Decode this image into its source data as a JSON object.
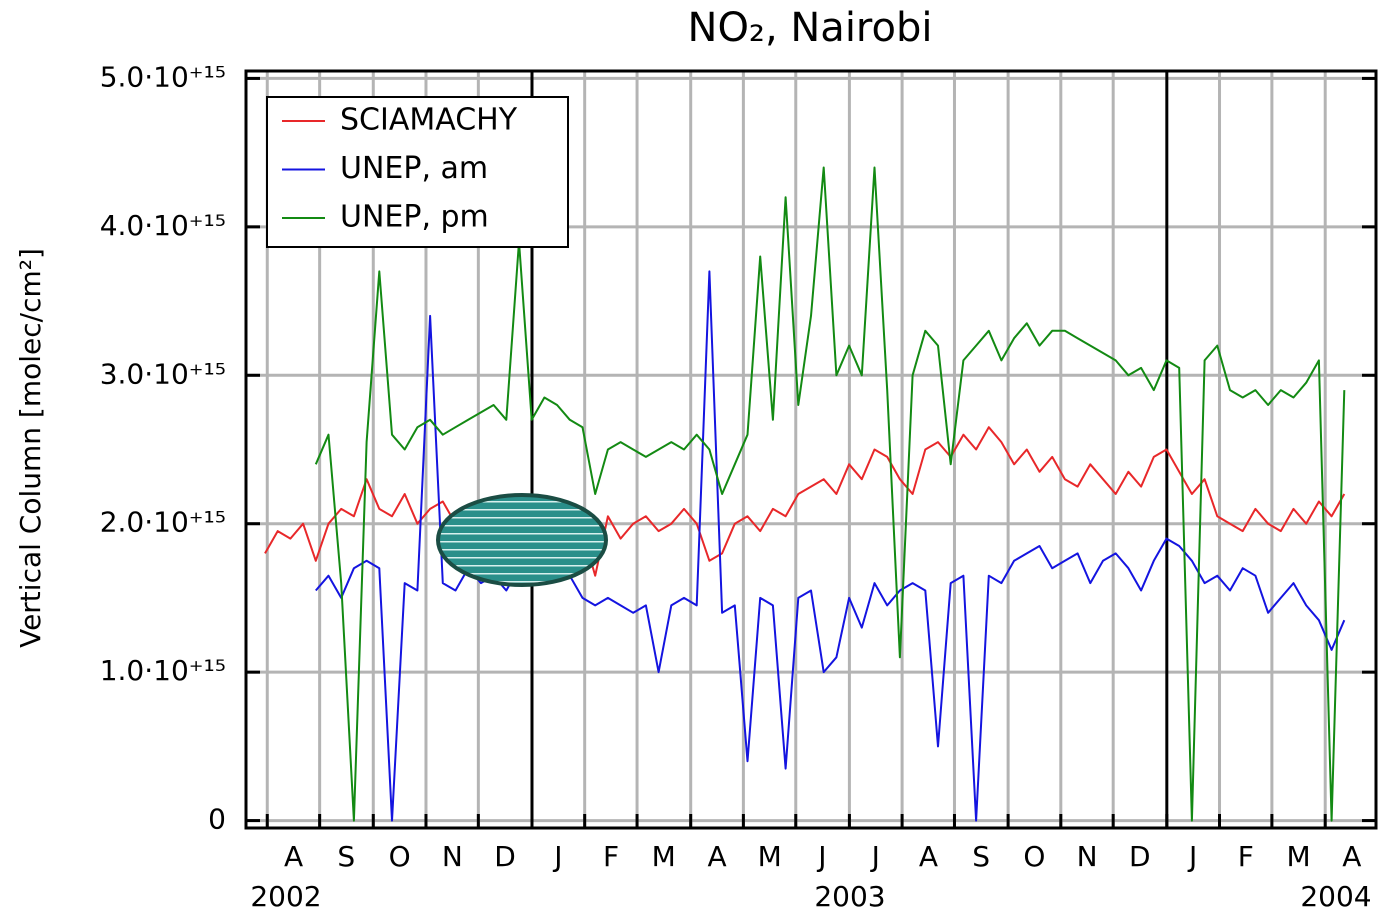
{
  "chart_data": {
    "type": "line",
    "title": "NO₂, Nairobi",
    "y_label": "Vertical Column [molec/cm²]",
    "years": [
      "2002",
      "2003",
      "2004"
    ],
    "xlim": [
      2002.55,
      2004.33
    ],
    "xticks": [
      {
        "value": 2002.625,
        "label": "A"
      },
      {
        "value": 2002.708,
        "label": "S"
      },
      {
        "value": 2002.792,
        "label": "O"
      },
      {
        "value": 2002.875,
        "label": "N"
      },
      {
        "value": 2002.958,
        "label": "D"
      },
      {
        "value": 2003.042,
        "label": "J"
      },
      {
        "value": 2003.125,
        "label": "F"
      },
      {
        "value": 2003.208,
        "label": "M"
      },
      {
        "value": 2003.292,
        "label": "A"
      },
      {
        "value": 2003.375,
        "label": "M"
      },
      {
        "value": 2003.458,
        "label": "J"
      },
      {
        "value": 2003.542,
        "label": "J"
      },
      {
        "value": 2003.625,
        "label": "A"
      },
      {
        "value": 2003.708,
        "label": "S"
      },
      {
        "value": 2003.792,
        "label": "O"
      },
      {
        "value": 2003.875,
        "label": "N"
      },
      {
        "value": 2003.958,
        "label": "D"
      },
      {
        "value": 2004.042,
        "label": "J"
      },
      {
        "value": 2004.125,
        "label": "F"
      },
      {
        "value": 2004.208,
        "label": "M"
      },
      {
        "value": 2004.292,
        "label": "A"
      }
    ],
    "ylim": [
      -50000000000000.0,
      5050000000000000.0
    ],
    "yticks": [
      0,
      {
        "value": 1000000000000000.0,
        "label": "1.0·10⁺¹⁵"
      },
      {
        "value": 2000000000000000.0,
        "label": "2.0·10⁺¹⁵"
      },
      {
        "value": 3000000000000000.0,
        "label": "3.0·10⁺¹⁵"
      },
      {
        "value": 4000000000000000.0,
        "label": "4.0·10⁺¹⁵"
      },
      {
        "value": 5000000000000000.0,
        "label": "5.0·10⁺¹⁵"
      }
    ],
    "grid": true,
    "legend": "upper-left",
    "x": [
      2002.58,
      2002.6,
      2002.62,
      2002.64,
      2002.66,
      2002.68,
      2002.7,
      2002.72,
      2002.74,
      2002.76,
      2002.78,
      2002.8,
      2002.82,
      2002.84,
      2002.86,
      2002.88,
      2002.9,
      2002.92,
      2002.94,
      2002.96,
      2002.98,
      2003.0,
      2003.02,
      2003.04,
      2003.06,
      2003.08,
      2003.1,
      2003.12,
      2003.14,
      2003.16,
      2003.18,
      2003.2,
      2003.22,
      2003.24,
      2003.26,
      2003.28,
      2003.3,
      2003.32,
      2003.34,
      2003.36,
      2003.38,
      2003.4,
      2003.42,
      2003.44,
      2003.46,
      2003.48,
      2003.5,
      2003.52,
      2003.54,
      2003.56,
      2003.58,
      2003.6,
      2003.62,
      2003.64,
      2003.66,
      2003.68,
      2003.7,
      2003.72,
      2003.74,
      2003.76,
      2003.78,
      2003.8,
      2003.82,
      2003.84,
      2003.86,
      2003.88,
      2003.9,
      2003.92,
      2003.94,
      2003.96,
      2003.98,
      2004.0,
      2004.02,
      2004.04,
      2004.06,
      2004.08,
      2004.1,
      2004.12,
      2004.14,
      2004.16,
      2004.18,
      2004.2,
      2004.22,
      2004.24,
      2004.26,
      2004.28
    ],
    "series": [
      {
        "name": "SCIAMACHY",
        "color": "#e8282a",
        "values": [
          1800000000000000.0,
          1950000000000000.0,
          1900000000000000.0,
          2000000000000000.0,
          1750000000000000.0,
          2000000000000000.0,
          2100000000000000.0,
          2050000000000000.0,
          2300000000000000.0,
          2100000000000000.0,
          2050000000000000.0,
          2200000000000000.0,
          2000000000000000.0,
          2100000000000000.0,
          2150000000000000.0,
          2000000000000000.0,
          1950000000000000.0,
          1950000000000000.0,
          1900000000000000.0,
          2000000000000000.0,
          2000000000000000.0,
          2050000000000000.0,
          2000000000000000.0,
          2100000000000000.0,
          2000000000000000.0,
          1950000000000000.0,
          1650000000000000.0,
          2050000000000000.0,
          1900000000000000.0,
          2000000000000000.0,
          2050000000000000.0,
          1950000000000000.0,
          2000000000000000.0,
          2100000000000000.0,
          2000000000000000.0,
          1750000000000000.0,
          1800000000000000.0,
          2000000000000000.0,
          2050000000000000.0,
          1950000000000000.0,
          2100000000000000.0,
          2050000000000000.0,
          2200000000000000.0,
          2250000000000000.0,
          2300000000000000.0,
          2200000000000000.0,
          2400000000000000.0,
          2300000000000000.0,
          2500000000000000.0,
          2450000000000000.0,
          2300000000000000.0,
          2200000000000000.0,
          2500000000000000.0,
          2550000000000000.0,
          2450000000000000.0,
          2600000000000000.0,
          2500000000000000.0,
          2650000000000000.0,
          2550000000000000.0,
          2400000000000000.0,
          2500000000000000.0,
          2350000000000000.0,
          2450000000000000.0,
          2300000000000000.0,
          2250000000000000.0,
          2400000000000000.0,
          2300000000000000.0,
          2200000000000000.0,
          2350000000000000.0,
          2250000000000000.0,
          2450000000000000.0,
          2500000000000000.0,
          2350000000000000.0,
          2200000000000000.0,
          2300000000000000.0,
          2050000000000000.0,
          2000000000000000.0,
          1950000000000000.0,
          2100000000000000.0,
          2000000000000000.0,
          1950000000000000.0,
          2100000000000000.0,
          2000000000000000.0,
          2150000000000000.0,
          2050000000000000.0,
          2200000000000000.0
        ]
      },
      {
        "name": "UNEP, am",
        "color": "#1414e0",
        "values": [
          null,
          null,
          null,
          null,
          1550000000000000.0,
          1650000000000000.0,
          1500000000000000.0,
          1700000000000000.0,
          1750000000000000.0,
          1700000000000000.0,
          0,
          1600000000000000.0,
          1550000000000000.0,
          3400000000000000.0,
          1600000000000000.0,
          1550000000000000.0,
          1700000000000000.0,
          1600000000000000.0,
          1650000000000000.0,
          1550000000000000.0,
          1700000000000000.0,
          1750000000000000.0,
          1800000000000000.0,
          1750000000000000.0,
          1650000000000000.0,
          1500000000000000.0,
          1450000000000000.0,
          1500000000000000.0,
          1450000000000000.0,
          1400000000000000.0,
          1450000000000000.0,
          1000000000000000.0,
          1450000000000000.0,
          1500000000000000.0,
          1450000000000000.0,
          3700000000000000.0,
          1400000000000000.0,
          1450000000000000.0,
          400000000000000.0,
          1500000000000000.0,
          1450000000000000.0,
          350000000000000.0,
          1500000000000000.0,
          1550000000000000.0,
          1000000000000000.0,
          1100000000000000.0,
          1500000000000000.0,
          1300000000000000.0,
          1600000000000000.0,
          1450000000000000.0,
          1550000000000000.0,
          1600000000000000.0,
          1550000000000000.0,
          500000000000000.0,
          1600000000000000.0,
          1650000000000000.0,
          0,
          1650000000000000.0,
          1600000000000000.0,
          1750000000000000.0,
          1800000000000000.0,
          1850000000000000.0,
          1700000000000000.0,
          1750000000000000.0,
          1800000000000000.0,
          1600000000000000.0,
          1750000000000000.0,
          1800000000000000.0,
          1700000000000000.0,
          1550000000000000.0,
          1750000000000000.0,
          1900000000000000.0,
          1850000000000000.0,
          1750000000000000.0,
          1600000000000000.0,
          1650000000000000.0,
          1550000000000000.0,
          1700000000000000.0,
          1650000000000000.0,
          1400000000000000.0,
          1500000000000000.0,
          1600000000000000.0,
          1450000000000000.0,
          1350000000000000.0,
          1150000000000000.0,
          1350000000000000.0
        ]
      },
      {
        "name": "UNEP, pm",
        "color": "#138a13",
        "values": [
          null,
          null,
          null,
          null,
          2400000000000000.0,
          2600000000000000.0,
          1600000000000000.0,
          0,
          2550000000000000.0,
          3700000000000000.0,
          2600000000000000.0,
          2500000000000000.0,
          2650000000000000.0,
          2700000000000000.0,
          2600000000000000.0,
          2650000000000000.0,
          2700000000000000.0,
          2750000000000000.0,
          2800000000000000.0,
          2700000000000000.0,
          3900000000000000.0,
          2700000000000000.0,
          2850000000000000.0,
          2800000000000000.0,
          2700000000000000.0,
          2650000000000000.0,
          2200000000000000.0,
          2500000000000000.0,
          2550000000000000.0,
          2500000000000000.0,
          2450000000000000.0,
          2500000000000000.0,
          2550000000000000.0,
          2500000000000000.0,
          2600000000000000.0,
          2500000000000000.0,
          2200000000000000.0,
          2400000000000000.0,
          2600000000000000.0,
          3800000000000000.0,
          2700000000000000.0,
          4200000000000000.0,
          2800000000000000.0,
          3400000000000000.0,
          4400000000000000.0,
          3000000000000000.0,
          3200000000000000.0,
          3000000000000000.0,
          4400000000000000.0,
          2900000000000000.0,
          1100000000000000.0,
          3000000000000000.0,
          3300000000000000.0,
          3200000000000000.0,
          2400000000000000.0,
          3100000000000000.0,
          3200000000000000.0,
          3300000000000000.0,
          3100000000000000.0,
          3250000000000000.0,
          3350000000000000.0,
          3200000000000000.0,
          3300000000000000.0,
          3300000000000000.0,
          3250000000000000.0,
          3200000000000000.0,
          3150000000000000.0,
          3100000000000000.0,
          3000000000000000.0,
          3050000000000000.0,
          2900000000000000.0,
          3100000000000000.0,
          3050000000000000.0,
          0,
          3100000000000000.0,
          3200000000000000.0,
          2900000000000000.0,
          2850000000000000.0,
          2900000000000000.0,
          2800000000000000.0,
          2900000000000000.0,
          2850000000000000.0,
          2950000000000000.0,
          3100000000000000.0,
          0,
          2900000000000000.0
        ]
      }
    ]
  }
}
